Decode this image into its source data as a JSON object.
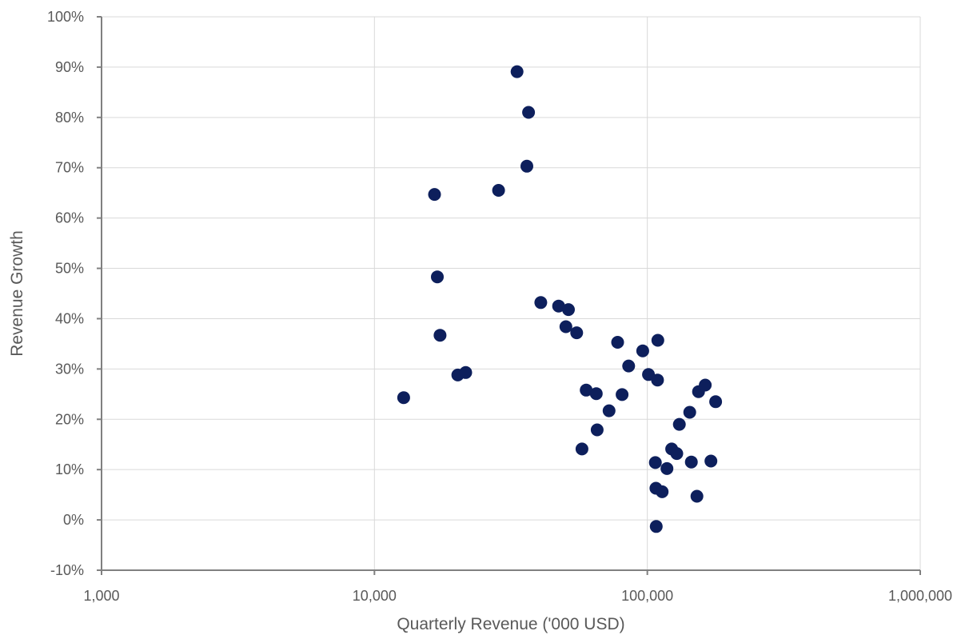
{
  "chart_data": {
    "type": "scatter",
    "title": "",
    "xlabel": "Quarterly Revenue ('000 USD)",
    "ylabel": "Revenue Growth",
    "x_scale": "log",
    "xlim": [
      1000,
      1000000
    ],
    "ylim": [
      -0.1,
      1.0
    ],
    "x_tick_values": [
      1000,
      10000,
      100000,
      1000000
    ],
    "x_tick_labels": [
      "1,000",
      "10,000",
      "100,000",
      "1,000,000"
    ],
    "y_tick_values": [
      -0.1,
      0,
      0.1,
      0.2,
      0.3,
      0.4,
      0.5,
      0.6,
      0.7,
      0.8,
      0.9,
      1.0
    ],
    "y_tick_labels": [
      "-10%",
      "0%",
      "10%",
      "20%",
      "30%",
      "40%",
      "50%",
      "60%",
      "70%",
      "80%",
      "90%",
      "100%"
    ],
    "grid": true,
    "marker_color": "#0d1f5c",
    "series": [
      {
        "points": [
          {
            "x": 12800,
            "y": 0.243
          },
          {
            "x": 16600,
            "y": 0.647
          },
          {
            "x": 17000,
            "y": 0.483
          },
          {
            "x": 17400,
            "y": 0.367
          },
          {
            "x": 20200,
            "y": 0.288
          },
          {
            "x": 21600,
            "y": 0.293
          },
          {
            "x": 28500,
            "y": 0.655
          },
          {
            "x": 33300,
            "y": 0.891
          },
          {
            "x": 36200,
            "y": 0.703
          },
          {
            "x": 36700,
            "y": 0.81
          },
          {
            "x": 40700,
            "y": 0.432
          },
          {
            "x": 47300,
            "y": 0.425
          },
          {
            "x": 50300,
            "y": 0.384
          },
          {
            "x": 51400,
            "y": 0.418
          },
          {
            "x": 55100,
            "y": 0.372
          },
          {
            "x": 57600,
            "y": 0.141
          },
          {
            "x": 59700,
            "y": 0.258
          },
          {
            "x": 65000,
            "y": 0.251
          },
          {
            "x": 65500,
            "y": 0.179
          },
          {
            "x": 72400,
            "y": 0.217
          },
          {
            "x": 77800,
            "y": 0.353
          },
          {
            "x": 80800,
            "y": 0.249
          },
          {
            "x": 85400,
            "y": 0.306
          },
          {
            "x": 96200,
            "y": 0.336
          },
          {
            "x": 101000,
            "y": 0.289
          },
          {
            "x": 107000,
            "y": 0.114
          },
          {
            "x": 107500,
            "y": 0.063
          },
          {
            "x": 107800,
            "y": -0.013
          },
          {
            "x": 109000,
            "y": 0.278
          },
          {
            "x": 109300,
            "y": 0.357
          },
          {
            "x": 113300,
            "y": 0.056
          },
          {
            "x": 118000,
            "y": 0.102
          },
          {
            "x": 122800,
            "y": 0.141
          },
          {
            "x": 128200,
            "y": 0.132
          },
          {
            "x": 131000,
            "y": 0.19
          },
          {
            "x": 143000,
            "y": 0.214
          },
          {
            "x": 145000,
            "y": 0.115
          },
          {
            "x": 152000,
            "y": 0.047
          },
          {
            "x": 154000,
            "y": 0.255
          },
          {
            "x": 163000,
            "y": 0.268
          },
          {
            "x": 171000,
            "y": 0.117
          },
          {
            "x": 178000,
            "y": 0.235
          }
        ]
      }
    ]
  }
}
